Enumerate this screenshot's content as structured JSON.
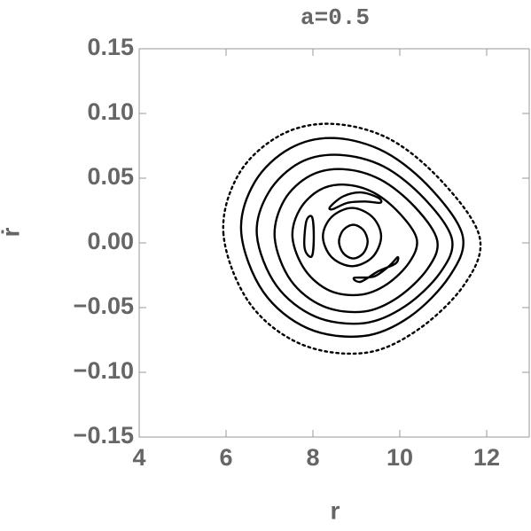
{
  "chart_data": {
    "type": "line",
    "title": "a=0.5",
    "x_label": "r",
    "y_label": "ṙ",
    "xlim": [
      4,
      13
    ],
    "ylim": [
      -0.15,
      0.15
    ],
    "xticks": [
      4,
      6,
      8,
      10,
      12
    ],
    "yticks": [
      {
        "value": 0.15,
        "label": "0.15"
      },
      {
        "value": 0.1,
        "label": "0.10"
      },
      {
        "value": 0.05,
        "label": "0.05"
      },
      {
        "value": 0,
        "label": "0.00"
      },
      {
        "value": -0.05,
        "label": "−0.05"
      },
      {
        "value": -0.1,
        "label": "−0.10"
      },
      {
        "value": -0.15,
        "label": "−0.15"
      }
    ],
    "closed": true,
    "series": [
      {
        "color": "#000000",
        "style": "dotted",
        "x": [
          5.94,
          6.29,
          7.24,
          8.42,
          9.78,
          11.01,
          11.84,
          11.49,
          10.42,
          9.19,
          7.71,
          6.53
        ],
        "y": [
          0.007,
          0.053,
          0.083,
          0.092,
          0.08,
          0.046,
          0.004,
          -0.032,
          -0.067,
          -0.085,
          -0.078,
          -0.046
        ]
      },
      {
        "color": "#000000",
        "style": "solid",
        "x": [
          6.35,
          6.66,
          7.47,
          8.49,
          9.67,
          10.74,
          11.45,
          11.14,
          10.23,
          9.16,
          7.88,
          6.86
        ],
        "y": [
          0.008,
          0.047,
          0.073,
          0.081,
          0.07,
          0.041,
          0.005,
          -0.026,
          -0.057,
          -0.072,
          -0.066,
          -0.038
        ]
      },
      {
        "color": "#000000",
        "style": "solid",
        "x": [
          6.71,
          6.98,
          7.7,
          8.6,
          9.63,
          10.57,
          11.2,
          10.93,
          10.12,
          9.18,
          8.06,
          7.16
        ],
        "y": [
          0.006,
          0.039,
          0.062,
          0.068,
          0.059,
          0.034,
          0.003,
          -0.023,
          -0.049,
          -0.062,
          -0.057,
          -0.033
        ]
      },
      {
        "color": "#000000",
        "style": "solid",
        "x": [
          7.12,
          7.34,
          7.94,
          8.69,
          9.55,
          10.34,
          10.86,
          10.64,
          9.96,
          9.18,
          8.24,
          7.49
        ],
        "y": [
          0.004,
          0.033,
          0.052,
          0.057,
          0.049,
          0.028,
          0.002,
          -0.02,
          -0.042,
          -0.053,
          -0.049,
          -0.029
        ]
      },
      {
        "color": "#000000",
        "style": "solid",
        "x": [
          7.53,
          7.7,
          8.16,
          8.73,
          9.39,
          9.99,
          10.39,
          10.22,
          9.7,
          9.1,
          8.39,
          7.82
        ],
        "y": [
          0.004,
          0.026,
          0.041,
          0.045,
          0.039,
          0.023,
          0.003,
          -0.015,
          -0.032,
          -0.04,
          -0.037,
          -0.021
        ]
      },
      {
        "color": "#000000",
        "style": "solid",
        "x": [
          8.4,
          8.7,
          9.1,
          9.5,
          9.55,
          9.2,
          8.8,
          8.45
        ],
        "y": [
          0.028,
          0.036,
          0.039,
          0.035,
          0.031,
          0.032,
          0.031,
          0.026
        ]
      },
      {
        "color": "#000000",
        "style": "solid",
        "x": [
          7.8,
          7.85,
          7.98,
          8.02,
          7.98,
          7.85
        ],
        "y": [
          0.0,
          0.017,
          0.02,
          0.005,
          -0.01,
          -0.008
        ]
      },
      {
        "color": "#000000",
        "style": "solid",
        "x": [
          8.95,
          9.4,
          9.75,
          9.95,
          9.9,
          9.5,
          9.1
        ],
        "y": [
          -0.027,
          -0.026,
          -0.018,
          -0.011,
          -0.016,
          -0.022,
          -0.03
        ]
      },
      {
        "color": "#000000",
        "style": "solid",
        "x": [
          9.57,
          9.37,
          8.9,
          8.43,
          8.23,
          8.43,
          8.9,
          9.37
        ],
        "y": [
          0.005,
          0.02,
          0.027,
          0.02,
          0.005,
          -0.011,
          -0.018,
          -0.011
        ]
      },
      {
        "color": "#000000",
        "style": "solid",
        "x": [
          9.26,
          9.16,
          8.93,
          8.7,
          8.6,
          8.7,
          8.93,
          9.16
        ],
        "y": [
          0.001,
          0.01,
          0.014,
          0.01,
          0.001,
          -0.008,
          -0.012,
          -0.008
        ]
      }
    ]
  }
}
